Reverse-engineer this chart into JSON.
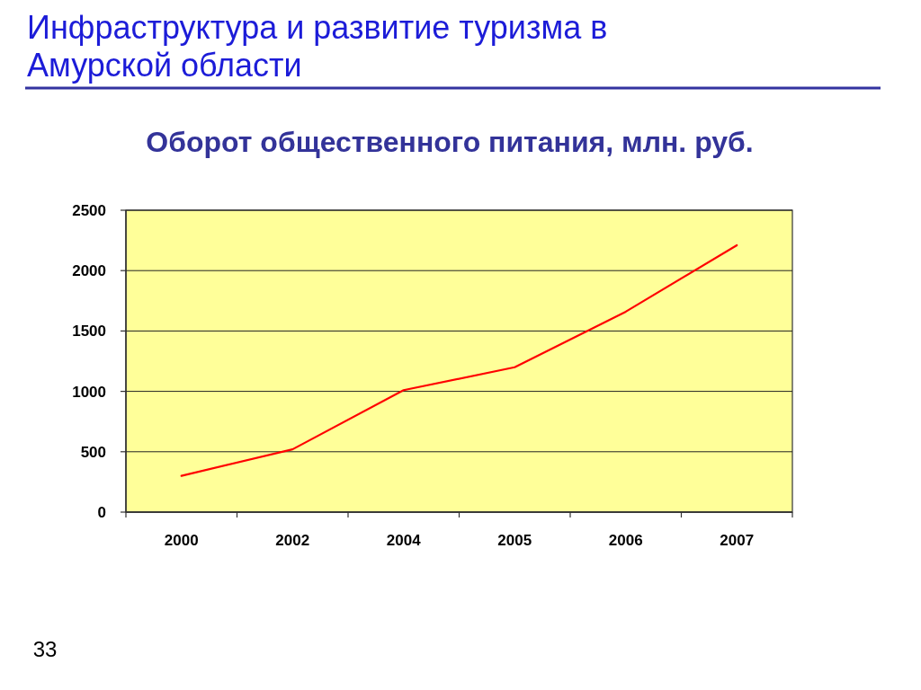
{
  "chart_data": {
    "type": "line",
    "title": "Инфраструктура и развитие туризма в Амурской области",
    "subtitle": "Оборот общественного питания, млн. руб.",
    "categories": [
      "2000",
      "2002",
      "2004",
      "2005",
      "2006",
      "2007"
    ],
    "series": [
      {
        "color": "#ff0000",
        "values": [
          300,
          520,
          1010,
          1200,
          1660,
          2210
        ]
      }
    ],
    "ylim": [
      0,
      2500
    ],
    "yticks": [
      0,
      500,
      1000,
      1500,
      2000,
      2500
    ],
    "grid": "y",
    "annotations": [
      "33"
    ]
  }
}
